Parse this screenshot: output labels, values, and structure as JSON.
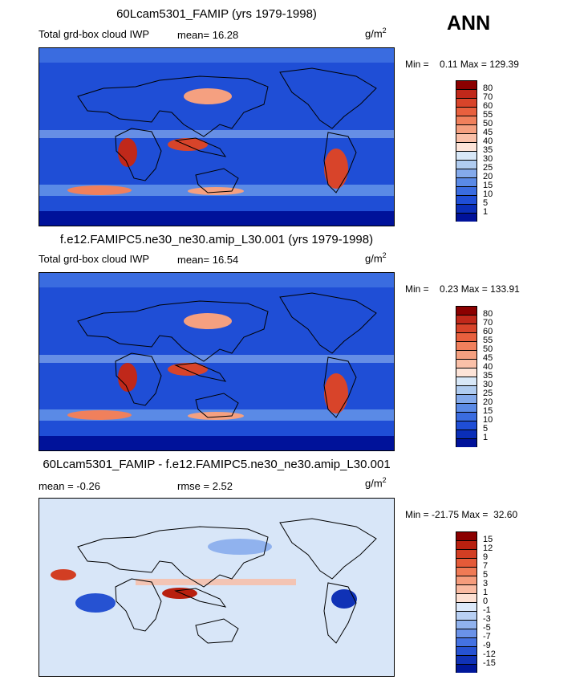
{
  "season": "ANN",
  "panels": [
    {
      "title": "60Lcam5301_FAMIP (yrs 1979-1998)",
      "variable": "Total grd-box cloud IWP",
      "stat1": "mean=  16.28",
      "stat2": "",
      "units_base": "g/m",
      "units_exp": "2",
      "min_label": "Min =",
      "min_value": "0.11",
      "max_label": "Max =",
      "max_value": "129.39",
      "colorbar_labels": [
        "80",
        "70",
        "60",
        "55",
        "50",
        "45",
        "40",
        "35",
        "30",
        "25",
        "20",
        "15",
        "10",
        "5",
        "1"
      ],
      "colors": [
        "#8b0000",
        "#c0281a",
        "#d8442a",
        "#e8603e",
        "#f0805c",
        "#f5a080",
        "#fac0a8",
        "#fde4d8",
        "#d8e8f8",
        "#b0ccf0",
        "#84aaeb",
        "#5a8ae6",
        "#3a6ce0",
        "#1f4ed6",
        "#0a2eb8",
        "#00129a"
      ]
    },
    {
      "title": "f.e12.FAMIPC5.ne30_ne30.amip_L30.001 (yrs 1979-1998)",
      "variable": "Total grd-box cloud IWP",
      "stat1": "mean=  16.54",
      "stat2": "",
      "units_base": "g/m",
      "units_exp": "2",
      "min_label": "Min =",
      "min_value": "0.23",
      "max_label": "Max =",
      "max_value": "133.91",
      "colorbar_labels": [
        "80",
        "70",
        "60",
        "55",
        "50",
        "45",
        "40",
        "35",
        "30",
        "25",
        "20",
        "15",
        "10",
        "5",
        "1"
      ],
      "colors": [
        "#8b0000",
        "#c0281a",
        "#d8442a",
        "#e8603e",
        "#f0805c",
        "#f5a080",
        "#fac0a8",
        "#fde4d8",
        "#d8e8f8",
        "#b0ccf0",
        "#84aaeb",
        "#5a8ae6",
        "#3a6ce0",
        "#1f4ed6",
        "#0a2eb8",
        "#00129a"
      ]
    },
    {
      "title": "60Lcam5301_FAMIP - f.e12.FAMIPC5.ne30_ne30.amip_L30.001",
      "variable": "",
      "stat1": "mean =  -0.26",
      "stat2": "rmse =   2.52",
      "units_base": "g/m",
      "units_exp": "2",
      "min_label": "Min =",
      "min_value": "-21.75",
      "max_label": "Max =",
      "max_value": "32.60",
      "colorbar_labels": [
        "15",
        "12",
        "9",
        "7",
        "5",
        "3",
        "1",
        "0",
        "-1",
        "-3",
        "-5",
        "-7",
        "-9",
        "-12",
        "-15"
      ],
      "colors": [
        "#8b0000",
        "#b8200f",
        "#d23e23",
        "#e45a38",
        "#ef7a55",
        "#f59c7c",
        "#fabba2",
        "#fde0d2",
        "#dce9fa",
        "#b8d0f4",
        "#90b2ee",
        "#6a92e8",
        "#4472e2",
        "#2652d2",
        "#1032b6",
        "#00179a"
      ]
    }
  ]
}
